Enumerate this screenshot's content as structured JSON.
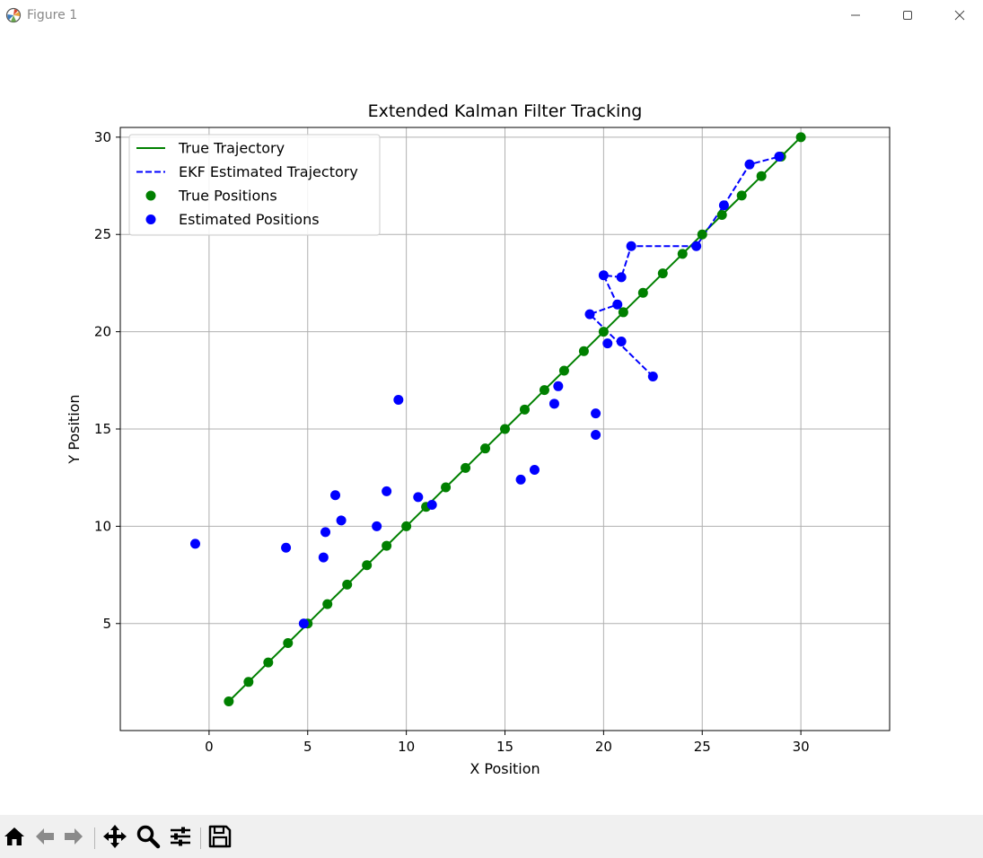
{
  "window": {
    "title": "Figure 1",
    "icons": [
      "matplotlib-icon",
      "minimize-icon",
      "maximize-icon",
      "close-icon"
    ]
  },
  "toolbar": {
    "buttons": [
      "home-icon",
      "back-icon",
      "forward-icon",
      "pan-icon",
      "zoom-icon",
      "configure-subplots-icon",
      "save-icon"
    ]
  },
  "chart_data": {
    "type": "line",
    "title": "Extended Kalman Filter Tracking",
    "xlabel": "X Position",
    "ylabel": "Y Position",
    "xlim": [
      -4.5,
      34.5
    ],
    "ylim": [
      -0.5,
      30.5
    ],
    "xticks": [
      0,
      5,
      10,
      15,
      20,
      25,
      30
    ],
    "yticks": [
      5,
      10,
      15,
      20,
      25,
      30
    ],
    "grid": true,
    "legend": "upper-left",
    "colors": {
      "true": "#008000",
      "estimated": "#0000ff",
      "grid": "#b0b0b0"
    },
    "series": [
      {
        "name": "True Trajectory",
        "style": "solid-line",
        "x": [
          1,
          2,
          3,
          4,
          5,
          6,
          7,
          8,
          9,
          10,
          11,
          12,
          13,
          14,
          15,
          16,
          17,
          18,
          19,
          20,
          21,
          22,
          23,
          24,
          25,
          26,
          27,
          28,
          29,
          30
        ],
        "y": [
          1,
          2,
          3,
          4,
          5,
          6,
          7,
          8,
          9,
          10,
          11,
          12,
          13,
          14,
          15,
          16,
          17,
          18,
          19,
          20,
          21,
          22,
          23,
          24,
          25,
          26,
          27,
          28,
          29,
          30
        ]
      },
      {
        "name": "EKF Estimated Trajectory",
        "style": "dashed-line",
        "x": [
          22.5,
          19.3,
          20.7,
          20.0,
          20.9,
          21.4,
          24.7,
          26.1,
          27.4,
          28.9
        ],
        "y": [
          17.7,
          20.9,
          21.4,
          22.9,
          22.8,
          24.4,
          24.4,
          26.5,
          28.6,
          29.0
        ]
      },
      {
        "name": "True Positions",
        "style": "markers",
        "x": [
          1,
          2,
          3,
          4,
          5,
          6,
          7,
          8,
          9,
          10,
          11,
          12,
          13,
          14,
          15,
          16,
          17,
          18,
          19,
          20,
          21,
          22,
          23,
          24,
          25,
          26,
          27,
          28,
          29,
          30
        ],
        "y": [
          1,
          2,
          3,
          4,
          5,
          6,
          7,
          8,
          9,
          10,
          11,
          12,
          13,
          14,
          15,
          16,
          17,
          18,
          19,
          20,
          21,
          22,
          23,
          24,
          25,
          26,
          27,
          28,
          29,
          30
        ]
      },
      {
        "name": "Estimated Positions",
        "style": "markers",
        "x": [
          4.8,
          -0.7,
          9.6,
          6.4,
          5.9,
          3.9,
          5.8,
          6.7,
          9.0,
          10.6,
          8.5,
          11.3,
          15.8,
          16.5,
          17.5,
          17.7,
          19.6,
          19.6,
          20.2,
          20.9,
          22.5,
          19.3,
          20.7,
          20.0,
          20.9,
          21.4,
          24.7,
          26.1,
          27.4,
          28.9
        ],
        "y": [
          5.0,
          9.1,
          16.5,
          11.6,
          9.7,
          8.9,
          8.4,
          10.3,
          11.8,
          11.5,
          10.0,
          11.1,
          12.4,
          12.9,
          16.3,
          17.2,
          15.8,
          14.7,
          19.4,
          19.5,
          17.7,
          20.9,
          21.4,
          22.9,
          22.8,
          24.4,
          24.4,
          26.5,
          28.6,
          29.0
        ]
      }
    ]
  }
}
